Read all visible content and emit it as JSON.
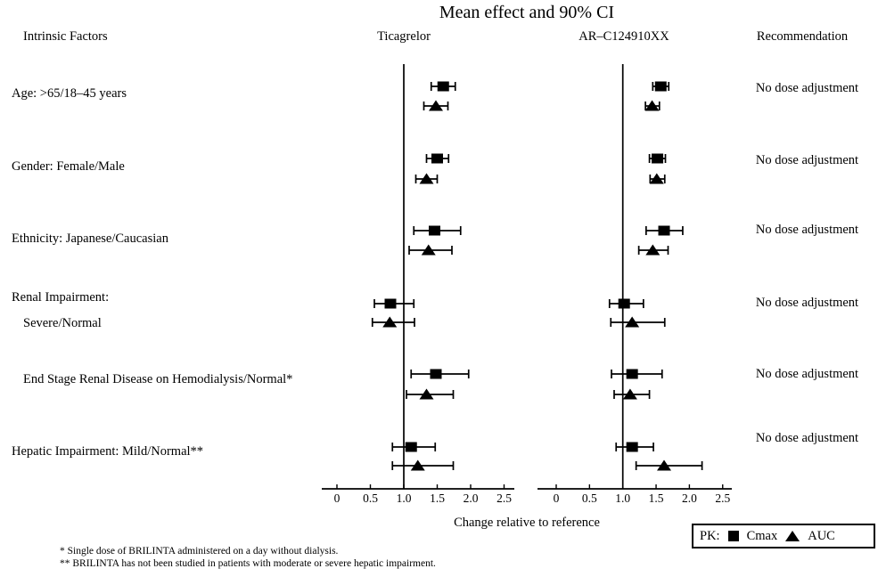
{
  "title": "Mean effect and 90% CI",
  "columns": {
    "intrinsic_factors": "Intrinsic Factors",
    "panel1": "Ticagrelor",
    "panel2": "AR–C124910XX",
    "recommendation": "Recommendation"
  },
  "xlabel": "Change relative to reference",
  "legend": {
    "prefix": "PK:",
    "square_label": "Cmax",
    "triangle_label": "AUC"
  },
  "footnotes": [
    "* Single dose of BRILINTA administered on a day without dialysis.",
    "** BRILINTA has not been studied in patients with moderate or severe hepatic impairment."
  ],
  "colors": {
    "ink": "#000000",
    "background": "#ffffff"
  },
  "chart_data": {
    "type": "forest",
    "title": "Mean effect and 90% CI",
    "ci_level": "90% CI",
    "xlabel": "Change relative to reference",
    "x_ticks": [
      "0",
      "0.5",
      "1.0",
      "1.5",
      "2.0",
      "2.5"
    ],
    "xlim": [
      -0.25,
      2.65
    ],
    "reference_line": 1.0,
    "grid": false,
    "legend_position": "bottom-right",
    "panels": [
      {
        "key": "ticagrelor",
        "label": "Ticagrelor"
      },
      {
        "key": "arc124910xx",
        "label": "AR–C124910XX"
      }
    ],
    "series_symbols": {
      "cmax": "square",
      "auc": "triangle"
    },
    "rows": [
      {
        "label_lines": [
          {
            "text": "Age: >65/18–45 years",
            "indent": 0
          }
        ],
        "recommendation": "No dose adjustment",
        "ticagrelor": {
          "cmax": {
            "est": 1.59,
            "lo": 1.41,
            "hi": 1.77
          },
          "auc": {
            "est": 1.48,
            "lo": 1.3,
            "hi": 1.66
          }
        },
        "arc124910xx": {
          "cmax": {
            "est": 1.57,
            "lo": 1.45,
            "hi": 1.69
          },
          "auc": {
            "est": 1.44,
            "lo": 1.34,
            "hi": 1.55
          }
        }
      },
      {
        "label_lines": [
          {
            "text": "Gender: Female/Male",
            "indent": 0
          }
        ],
        "recommendation": "No dose adjustment",
        "ticagrelor": {
          "cmax": {
            "est": 1.5,
            "lo": 1.34,
            "hi": 1.67
          },
          "auc": {
            "est": 1.34,
            "lo": 1.18,
            "hi": 1.5
          }
        },
        "arc124910xx": {
          "cmax": {
            "est": 1.52,
            "lo": 1.4,
            "hi": 1.64
          },
          "auc": {
            "est": 1.51,
            "lo": 1.41,
            "hi": 1.63
          }
        }
      },
      {
        "label_lines": [
          {
            "text": "Ethnicity: Japanese/Caucasian",
            "indent": 0
          }
        ],
        "recommendation": "No dose adjustment",
        "ticagrelor": {
          "cmax": {
            "est": 1.46,
            "lo": 1.15,
            "hi": 1.85
          },
          "auc": {
            "est": 1.37,
            "lo": 1.08,
            "hi": 1.72
          }
        },
        "arc124910xx": {
          "cmax": {
            "est": 1.62,
            "lo": 1.35,
            "hi": 1.9
          },
          "auc": {
            "est": 1.45,
            "lo": 1.24,
            "hi": 1.68
          }
        }
      },
      {
        "label_lines": [
          {
            "text": "Renal Impairment:",
            "indent": 0
          },
          {
            "text": "Severe/Normal",
            "indent": 1
          }
        ],
        "recommendation": "No dose adjustment",
        "ticagrelor": {
          "cmax": {
            "est": 0.8,
            "lo": 0.56,
            "hi": 1.15
          },
          "auc": {
            "est": 0.79,
            "lo": 0.53,
            "hi": 1.16
          }
        },
        "arc124910xx": {
          "cmax": {
            "est": 1.02,
            "lo": 0.8,
            "hi": 1.31
          },
          "auc": {
            "est": 1.14,
            "lo": 0.82,
            "hi": 1.63
          }
        }
      },
      {
        "label_lines": [
          {
            "text": "End Stage Renal Disease on Hemodialysis/Normal*",
            "indent": 1
          }
        ],
        "recommendation": "No dose adjustment",
        "ticagrelor": {
          "cmax": {
            "est": 1.48,
            "lo": 1.11,
            "hi": 1.97
          },
          "auc": {
            "est": 1.34,
            "lo": 1.04,
            "hi": 1.74
          }
        },
        "arc124910xx": {
          "cmax": {
            "est": 1.14,
            "lo": 0.83,
            "hi": 1.59
          },
          "auc": {
            "est": 1.11,
            "lo": 0.87,
            "hi": 1.4
          }
        }
      },
      {
        "label_lines": [
          {
            "text": "Hepatic Impairment: Mild/Normal**",
            "indent": 0
          }
        ],
        "recommendation": "No dose adjustment",
        "ticagrelor": {
          "cmax": {
            "est": 1.11,
            "lo": 0.83,
            "hi": 1.47
          },
          "auc": {
            "est": 1.21,
            "lo": 0.83,
            "hi": 1.74
          }
        },
        "arc124910xx": {
          "cmax": {
            "est": 1.14,
            "lo": 0.9,
            "hi": 1.46
          },
          "auc": {
            "est": 1.62,
            "lo": 1.2,
            "hi": 2.19
          }
        }
      }
    ]
  }
}
